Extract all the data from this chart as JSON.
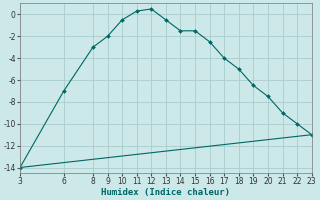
{
  "xlabel": "Humidex (Indice chaleur)",
  "background_color": "#cce8e8",
  "grid_color": "#aacccc",
  "line_color": "#006666",
  "x_curve": [
    3,
    6,
    8,
    9,
    10,
    11,
    12,
    13,
    14,
    15,
    16,
    17,
    18,
    19,
    20,
    21,
    22,
    23
  ],
  "y_curve": [
    -14,
    -7,
    -3,
    -2,
    -0.5,
    0.3,
    0.5,
    -0.5,
    -1.5,
    -1.5,
    -2.5,
    -4,
    -5,
    -6.5,
    -7.5,
    -9,
    -10,
    -11
  ],
  "x_flat": [
    3,
    4,
    5,
    6,
    7,
    8,
    9,
    10,
    11,
    12,
    13,
    14,
    15,
    16,
    17,
    18,
    19,
    20,
    21,
    22,
    23
  ],
  "y_flat": [
    -14.0,
    -13.85,
    -13.7,
    -13.55,
    -13.4,
    -13.25,
    -13.1,
    -12.95,
    -12.8,
    -12.65,
    -12.5,
    -12.35,
    -12.2,
    -12.05,
    -11.9,
    -11.75,
    -11.6,
    -11.45,
    -11.3,
    -11.15,
    -11.0
  ],
  "xlim": [
    3,
    23
  ],
  "ylim": [
    -14.5,
    1.0
  ],
  "yticks": [
    0,
    -2,
    -4,
    -6,
    -8,
    -10,
    -12,
    -14
  ],
  "xticks": [
    3,
    6,
    8,
    9,
    10,
    11,
    12,
    13,
    14,
    15,
    16,
    17,
    18,
    19,
    20,
    21,
    22,
    23
  ],
  "tick_fontsize": 5.5,
  "label_fontsize": 6.5
}
